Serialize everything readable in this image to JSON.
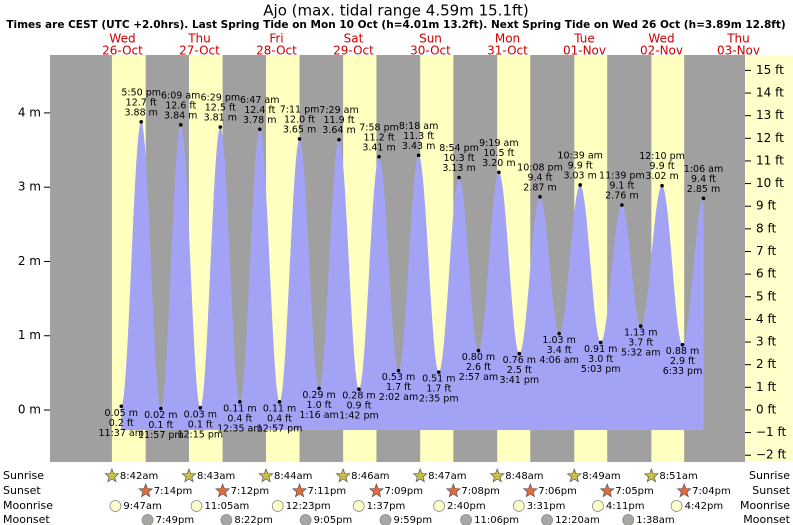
{
  "chart_data": {
    "type": "tide",
    "title": "Ajo (max. tidal range 4.59m 15.1ft)",
    "subtitle": "Times are CEST (UTC +2.0hrs). Last Spring Tide on Mon 10 Oct (h=4.01m 13.2ft). Next Spring Tide on Wed 26 Oct (h=3.89m 12.8ft)",
    "row_labels": {
      "sunrise": "Sunrise",
      "sunset": "Sunset",
      "moonrise": "Moonrise",
      "moonset": "Moonset"
    },
    "ylim": [
      -0.7,
      4.78
    ],
    "yticks": [
      {
        "value": 0,
        "label": "0 m"
      },
      {
        "value": 1,
        "label": "1 m"
      },
      {
        "value": 2,
        "label": "2 m"
      },
      {
        "value": 3,
        "label": "3 m"
      },
      {
        "value": 4,
        "label": "4 m"
      }
    ],
    "y2lim": [
      -2.3,
      15.68
    ],
    "y2ticks": [
      {
        "value": -2,
        "label": "−2 ft"
      },
      {
        "value": -1,
        "label": "−1 ft"
      },
      {
        "value": 0,
        "label": "0 ft"
      },
      {
        "value": 1,
        "label": "1 ft"
      },
      {
        "value": 2,
        "label": "2 ft"
      },
      {
        "value": 3,
        "label": "3 ft"
      },
      {
        "value": 4,
        "label": "4 ft"
      },
      {
        "value": 5,
        "label": "5 ft"
      },
      {
        "value": 6,
        "label": "6 ft"
      },
      {
        "value": 7,
        "label": "7 ft"
      },
      {
        "value": 8,
        "label": "8 ft"
      },
      {
        "value": 9,
        "label": "9 ft"
      },
      {
        "value": 10,
        "label": "10 ft"
      },
      {
        "value": 11,
        "label": "11 ft"
      },
      {
        "value": 12,
        "label": "12 ft"
      },
      {
        "value": 13,
        "label": "13 ft"
      },
      {
        "value": 14,
        "label": "14 ft"
      },
      {
        "value": 15,
        "label": "15 ft"
      }
    ],
    "days": [
      {
        "weekday": "Wed",
        "date": "26-Oct",
        "sunrise": "8:42am",
        "sunset": "7:14pm",
        "moonrise": "9:47am",
        "moonset": "7:49pm",
        "extremes": [
          {
            "time": "11:37 am",
            "height": 0.05,
            "height_label": "0.05 m",
            "ft": "0.2 ft"
          },
          {
            "time": "5:50 pm",
            "height": 3.88,
            "height_label": "3.88 m",
            "ft": "12.7 ft"
          },
          {
            "time": "11:57 pm",
            "height": 0.02,
            "height_label": "0.02 m",
            "ft": "0.1 ft"
          }
        ]
      },
      {
        "weekday": "Thu",
        "date": "27-Oct",
        "sunrise": "8:43am",
        "sunset": "7:12pm",
        "moonrise": "11:05am",
        "moonset": "8:22pm",
        "extremes": [
          {
            "time": "6:09 am",
            "height": 3.84,
            "height_label": "3.84 m",
            "ft": "12.6 ft"
          },
          {
            "time": "12:15 pm",
            "height": 0.03,
            "height_label": "0.03 m",
            "ft": "0.1 ft"
          },
          {
            "time": "6:29 pm",
            "height": 3.81,
            "height_label": "3.81 m",
            "ft": "12.5 ft"
          }
        ]
      },
      {
        "weekday": "Fri",
        "date": "28-Oct",
        "sunrise": "8:44am",
        "sunset": "7:11pm",
        "moonrise": "12:23pm",
        "moonset": "9:05pm",
        "extremes": [
          {
            "time": "12:35 am",
            "height": 0.11,
            "height_label": "0.11 m",
            "ft": "0.4 ft"
          },
          {
            "time": "6:47 am",
            "height": 3.78,
            "height_label": "3.78 m",
            "ft": "12.4 ft"
          },
          {
            "time": "12:57 pm",
            "height": 0.11,
            "height_label": "0.11 m",
            "ft": "0.4 ft"
          },
          {
            "time": "7:11 pm",
            "height": 3.65,
            "height_label": "3.65 m",
            "ft": "12.0 ft"
          }
        ]
      },
      {
        "weekday": "Sat",
        "date": "29-Oct",
        "sunrise": "8:46am",
        "sunset": "7:09pm",
        "moonrise": "1:37pm",
        "moonset": "9:59pm",
        "extremes": [
          {
            "time": "1:16 am",
            "height": 0.29,
            "height_label": "0.29 m",
            "ft": "1.0 ft"
          },
          {
            "time": "7:29 am",
            "height": 3.64,
            "height_label": "3.64 m",
            "ft": "11.9 ft"
          },
          {
            "time": "1:42 pm",
            "height": 0.28,
            "height_label": "0.28 m",
            "ft": "0.9 ft"
          },
          {
            "time": "7:58 pm",
            "height": 3.41,
            "height_label": "3.41 m",
            "ft": "11.2 ft"
          }
        ]
      },
      {
        "weekday": "Sun",
        "date": "30-Oct",
        "sunrise": "8:47am",
        "sunset": "7:08pm",
        "moonrise": "2:40pm",
        "moonset": "11:06pm",
        "extremes": [
          {
            "time": "2:02 am",
            "height": 0.53,
            "height_label": "0.53 m",
            "ft": "1.7 ft"
          },
          {
            "time": "8:18 am",
            "height": 3.43,
            "height_label": "3.43 m",
            "ft": "11.3 ft"
          },
          {
            "time": "2:35 pm",
            "height": 0.51,
            "height_label": "0.51 m",
            "ft": "1.7 ft"
          },
          {
            "time": "8:54 pm",
            "height": 3.13,
            "height_label": "3.13 m",
            "ft": "10.3 ft"
          }
        ]
      },
      {
        "weekday": "Mon",
        "date": "31-Oct",
        "sunrise": "8:48am",
        "sunset": "7:06pm",
        "moonrise": "3:31pm",
        "extremes": [
          {
            "time": "2:57 am",
            "height": 0.8,
            "height_label": "0.80 m",
            "ft": "2.6 ft"
          },
          {
            "time": "9:19 am",
            "height": 3.2,
            "height_label": "3.20 m",
            "ft": "10.5 ft"
          },
          {
            "time": "3:41 pm",
            "height": 0.76,
            "height_label": "0.76 m",
            "ft": "2.5 ft"
          },
          {
            "time": "10:08 pm",
            "height": 2.87,
            "height_label": "2.87 m",
            "ft": "9.4 ft"
          }
        ]
      },
      {
        "weekday": "Tue",
        "date": "01-Nov",
        "sunrise": "8:49am",
        "sunset": "7:05pm",
        "moonrise": "4:11pm",
        "moonset": "12:20am",
        "extremes": [
          {
            "time": "4:06 am",
            "height": 1.03,
            "height_label": "1.03 m",
            "ft": "3.4 ft"
          },
          {
            "time": "10:39 am",
            "height": 3.03,
            "height_label": "3.03 m",
            "ft": "9.9 ft"
          },
          {
            "time": "5:03 pm",
            "height": 0.91,
            "height_label": "0.91 m",
            "ft": "3.0 ft"
          },
          {
            "time": "11:39 pm",
            "height": 2.76,
            "height_label": "2.76 m",
            "ft": "9.1 ft"
          }
        ]
      },
      {
        "weekday": "Wed",
        "date": "02-Nov",
        "sunrise": "8:51am",
        "sunset": "7:04pm",
        "moonrise": "4:42pm",
        "moonset": "1:38am",
        "extremes": [
          {
            "time": "5:32 am",
            "height": 1.13,
            "height_label": "1.13 m",
            "ft": "3.7 ft"
          },
          {
            "time": "12:10 pm",
            "height": 3.02,
            "height_label": "3.02 m",
            "ft": "9.9 ft"
          },
          {
            "time": "6:33 pm",
            "height": 0.88,
            "height_label": "0.88 m",
            "ft": "2.9 ft"
          }
        ]
      },
      {
        "weekday": "Thu",
        "date": "03-Nov",
        "extremes": [
          {
            "time": "1:06 am",
            "height": 2.85,
            "height_label": "2.85 m",
            "ft": "9.4 ft"
          }
        ]
      }
    ]
  }
}
